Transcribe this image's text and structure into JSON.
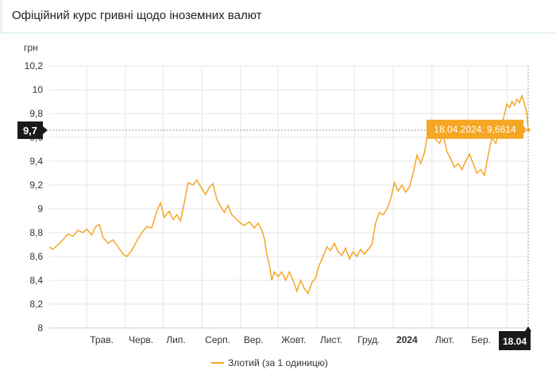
{
  "page_title": "Офіційний курс гривні щодо іноземних валют",
  "colors": {
    "series": "#f5a623",
    "grid": "#e6e6e6",
    "badge_dark": "#1a1a1a",
    "tooltip_bg": "#f5a623"
  },
  "chart_data": {
    "type": "line",
    "title": "",
    "ylabel": "грн",
    "xlabel": "",
    "ylim": [
      8,
      10.2
    ],
    "yticks": [
      "8",
      "8,2",
      "8,4",
      "8,6",
      "8,8",
      "9",
      "9,2",
      "9,4",
      "9,6",
      "9,8",
      "10",
      "10,2"
    ],
    "ytick_values": [
      8,
      8.2,
      8.4,
      8.6,
      8.8,
      9,
      9.2,
      9.4,
      9.6,
      9.8,
      10,
      10.2
    ],
    "xlim": [
      "2023-04-01",
      "2024-04-18"
    ],
    "xticks": [
      {
        "label": "Трав.",
        "date": "2023-05-01",
        "bold": false
      },
      {
        "label": "Черв.",
        "date": "2023-06-01",
        "bold": false
      },
      {
        "label": "Лип.",
        "date": "2023-07-01",
        "bold": false
      },
      {
        "label": "Серп.",
        "date": "2023-08-01",
        "bold": false
      },
      {
        "label": "Вер.",
        "date": "2023-09-01",
        "bold": false
      },
      {
        "label": "Жовт.",
        "date": "2023-10-01",
        "bold": false
      },
      {
        "label": "Лист.",
        "date": "2023-11-01",
        "bold": false
      },
      {
        "label": "Груд.",
        "date": "2023-12-01",
        "bold": false
      },
      {
        "label": "2024",
        "date": "2024-01-01",
        "bold": true
      },
      {
        "label": "Лют.",
        "date": "2024-02-01",
        "bold": false
      },
      {
        "label": "Бер.",
        "date": "2024-03-01",
        "bold": false
      },
      {
        "label": "Квіт.",
        "date": "2024-04-01",
        "bold": false
      }
    ],
    "grid": true,
    "legend_position": "bottom",
    "series": [
      {
        "name": "Злотий (за 1 одиницю)",
        "points": [
          [
            "2023-04-01",
            8.68
          ],
          [
            "2023-04-04",
            8.66
          ],
          [
            "2023-04-08",
            8.7
          ],
          [
            "2023-04-12",
            8.74
          ],
          [
            "2023-04-16",
            8.79
          ],
          [
            "2023-04-20",
            8.77
          ],
          [
            "2023-04-24",
            8.82
          ],
          [
            "2023-04-28",
            8.8
          ],
          [
            "2023-05-01",
            8.83
          ],
          [
            "2023-05-05",
            8.78
          ],
          [
            "2023-05-08",
            8.85
          ],
          [
            "2023-05-11",
            8.87
          ],
          [
            "2023-05-14",
            8.76
          ],
          [
            "2023-05-18",
            8.71
          ],
          [
            "2023-05-22",
            8.74
          ],
          [
            "2023-05-26",
            8.68
          ],
          [
            "2023-05-30",
            8.62
          ],
          [
            "2023-06-02",
            8.6
          ],
          [
            "2023-06-06",
            8.65
          ],
          [
            "2023-06-10",
            8.73
          ],
          [
            "2023-06-14",
            8.8
          ],
          [
            "2023-06-18",
            8.85
          ],
          [
            "2023-06-22",
            8.84
          ],
          [
            "2023-06-26",
            8.98
          ],
          [
            "2023-06-29",
            9.05
          ],
          [
            "2023-07-02",
            8.93
          ],
          [
            "2023-07-06",
            8.98
          ],
          [
            "2023-07-09",
            8.91
          ],
          [
            "2023-07-12",
            8.95
          ],
          [
            "2023-07-15",
            8.9
          ],
          [
            "2023-07-18",
            9.05
          ],
          [
            "2023-07-21",
            9.22
          ],
          [
            "2023-07-25",
            9.2
          ],
          [
            "2023-07-28",
            9.24
          ],
          [
            "2023-08-01",
            9.17
          ],
          [
            "2023-08-04",
            9.12
          ],
          [
            "2023-08-07",
            9.18
          ],
          [
            "2023-08-10",
            9.21
          ],
          [
            "2023-08-13",
            9.08
          ],
          [
            "2023-08-16",
            9.02
          ],
          [
            "2023-08-19",
            8.97
          ],
          [
            "2023-08-22",
            9.03
          ],
          [
            "2023-08-25",
            8.95
          ],
          [
            "2023-08-28",
            8.92
          ],
          [
            "2023-09-01",
            8.88
          ],
          [
            "2023-09-04",
            8.86
          ],
          [
            "2023-09-08",
            8.89
          ],
          [
            "2023-09-12",
            8.84
          ],
          [
            "2023-09-15",
            8.88
          ],
          [
            "2023-09-18",
            8.82
          ],
          [
            "2023-09-20",
            8.75
          ],
          [
            "2023-09-22",
            8.62
          ],
          [
            "2023-09-24",
            8.53
          ],
          [
            "2023-09-26",
            8.4
          ],
          [
            "2023-09-28",
            8.47
          ],
          [
            "2023-10-01",
            8.43
          ],
          [
            "2023-10-04",
            8.47
          ],
          [
            "2023-10-07",
            8.4
          ],
          [
            "2023-10-10",
            8.47
          ],
          [
            "2023-10-13",
            8.4
          ],
          [
            "2023-10-16",
            8.31
          ],
          [
            "2023-10-19",
            8.4
          ],
          [
            "2023-10-22",
            8.33
          ],
          [
            "2023-10-25",
            8.29
          ],
          [
            "2023-10-28",
            8.38
          ],
          [
            "2023-10-31",
            8.42
          ],
          [
            "2023-11-03",
            8.53
          ],
          [
            "2023-11-06",
            8.6
          ],
          [
            "2023-11-09",
            8.68
          ],
          [
            "2023-11-12",
            8.65
          ],
          [
            "2023-11-15",
            8.71
          ],
          [
            "2023-11-18",
            8.64
          ],
          [
            "2023-11-21",
            8.61
          ],
          [
            "2023-11-24",
            8.67
          ],
          [
            "2023-11-27",
            8.58
          ],
          [
            "2023-11-30",
            8.64
          ],
          [
            "2023-12-03",
            8.6
          ],
          [
            "2023-12-06",
            8.66
          ],
          [
            "2023-12-09",
            8.62
          ],
          [
            "2023-12-12",
            8.66
          ],
          [
            "2023-12-15",
            8.7
          ],
          [
            "2023-12-18",
            8.88
          ],
          [
            "2023-12-21",
            8.97
          ],
          [
            "2023-12-24",
            8.95
          ],
          [
            "2023-12-27",
            9.0
          ],
          [
            "2023-12-30",
            9.08
          ],
          [
            "2024-01-02",
            9.22
          ],
          [
            "2024-01-05",
            9.15
          ],
          [
            "2024-01-08",
            9.2
          ],
          [
            "2024-01-11",
            9.14
          ],
          [
            "2024-01-14",
            9.18
          ],
          [
            "2024-01-17",
            9.3
          ],
          [
            "2024-01-20",
            9.45
          ],
          [
            "2024-01-23",
            9.38
          ],
          [
            "2024-01-26",
            9.47
          ],
          [
            "2024-01-29",
            9.65
          ],
          [
            "2024-02-01",
            9.72
          ],
          [
            "2024-02-04",
            9.58
          ],
          [
            "2024-02-07",
            9.55
          ],
          [
            "2024-02-10",
            9.62
          ],
          [
            "2024-02-13",
            9.48
          ],
          [
            "2024-02-16",
            9.42
          ],
          [
            "2024-02-19",
            9.35
          ],
          [
            "2024-02-22",
            9.38
          ],
          [
            "2024-02-25",
            9.33
          ],
          [
            "2024-02-28",
            9.4
          ],
          [
            "2024-03-02",
            9.46
          ],
          [
            "2024-03-05",
            9.38
          ],
          [
            "2024-03-08",
            9.3
          ],
          [
            "2024-03-11",
            9.33
          ],
          [
            "2024-03-14",
            9.28
          ],
          [
            "2024-03-17",
            9.45
          ],
          [
            "2024-03-20",
            9.6
          ],
          [
            "2024-03-23",
            9.55
          ],
          [
            "2024-03-26",
            9.65
          ],
          [
            "2024-03-29",
            9.75
          ],
          [
            "2024-04-01",
            9.88
          ],
          [
            "2024-04-03",
            9.85
          ],
          [
            "2024-04-05",
            9.9
          ],
          [
            "2024-04-07",
            9.87
          ],
          [
            "2024-04-09",
            9.92
          ],
          [
            "2024-04-11",
            9.89
          ],
          [
            "2024-04-13",
            9.95
          ],
          [
            "2024-04-15",
            9.88
          ],
          [
            "2024-04-17",
            9.8
          ],
          [
            "2024-04-18",
            9.6614
          ]
        ]
      }
    ],
    "crosshair": {
      "y_badge": "9,7",
      "y_value": 9.66,
      "x_badge": "18.04",
      "tooltip": "18.04.2024: 9,6614",
      "point_date": "2024-04-18",
      "point_value": 9.6614
    }
  }
}
